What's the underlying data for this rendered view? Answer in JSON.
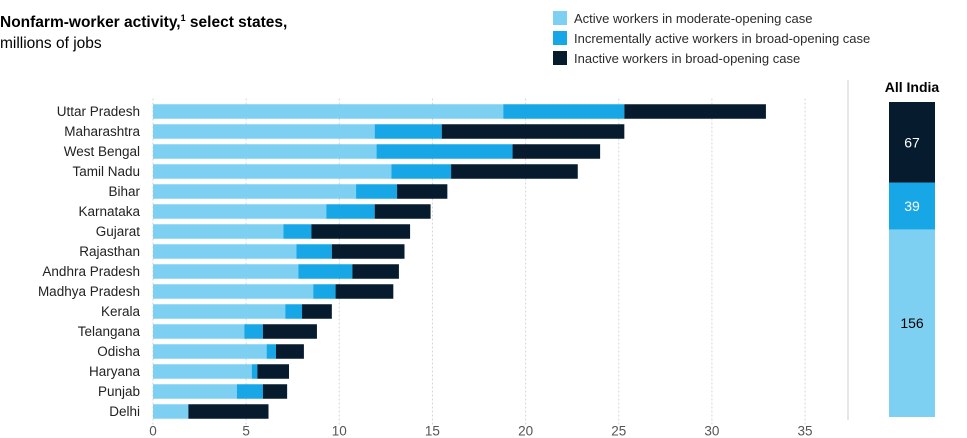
{
  "title": {
    "line1": "Nonfarm-worker activity,",
    "footnote": "1",
    "line1b": " select states,",
    "line2": "millions of jobs"
  },
  "legend": [
    {
      "label": "Active workers in moderate-opening case",
      "color": "#7dd0f2"
    },
    {
      "label": "Incrementally active workers in broad-opening case",
      "color": "#18a7e6"
    },
    {
      "label": "Inactive workers in broad-opening case",
      "color": "#061b2e"
    }
  ],
  "chart_data": [
    {
      "type": "bar",
      "orientation": "horizontal",
      "stacked": true,
      "categories": [
        "Uttar Pradesh",
        "Maharashtra",
        "West Bengal",
        "Tamil Nadu",
        "Bihar",
        "Karnataka",
        "Gujarat",
        "Rajasthan",
        "Andhra Pradesh",
        "Madhya Pradesh",
        "Kerala",
        "Telangana",
        "Odisha",
        "Haryana",
        "Punjab",
        "Delhi"
      ],
      "series": [
        {
          "name": "Active workers in moderate-opening case",
          "color": "#7dd0f2",
          "values": [
            18.8,
            11.9,
            12.0,
            12.8,
            10.9,
            9.3,
            7.0,
            7.7,
            7.8,
            8.6,
            7.1,
            4.9,
            6.1,
            5.3,
            4.5,
            1.9
          ]
        },
        {
          "name": "Incrementally active workers in broad-opening case",
          "color": "#18a7e6",
          "values": [
            6.5,
            3.6,
            7.3,
            3.2,
            2.2,
            2.6,
            1.5,
            1.9,
            2.9,
            1.2,
            0.9,
            1.0,
            0.5,
            0.3,
            1.4,
            0.0
          ]
        },
        {
          "name": "Inactive workers in broad-opening case",
          "color": "#061b2e",
          "values": [
            7.6,
            9.8,
            4.7,
            6.8,
            2.7,
            3.0,
            5.3,
            3.9,
            2.5,
            3.1,
            1.6,
            2.9,
            1.5,
            1.7,
            1.3,
            4.3
          ]
        }
      ],
      "xticks": [
        0,
        5,
        10,
        15,
        20,
        25,
        30,
        35
      ],
      "xlim": [
        0,
        37
      ],
      "grid": true
    },
    {
      "type": "bar",
      "stacked": true,
      "title": "All India",
      "series": [
        {
          "name": "Active workers in moderate-opening case",
          "value": 156,
          "label": "156"
        },
        {
          "name": "Incrementally active workers in broad-opening case",
          "value": 39,
          "label": "39"
        },
        {
          "name": "Inactive workers in broad-opening case",
          "value": 67,
          "label": "67"
        }
      ]
    }
  ]
}
